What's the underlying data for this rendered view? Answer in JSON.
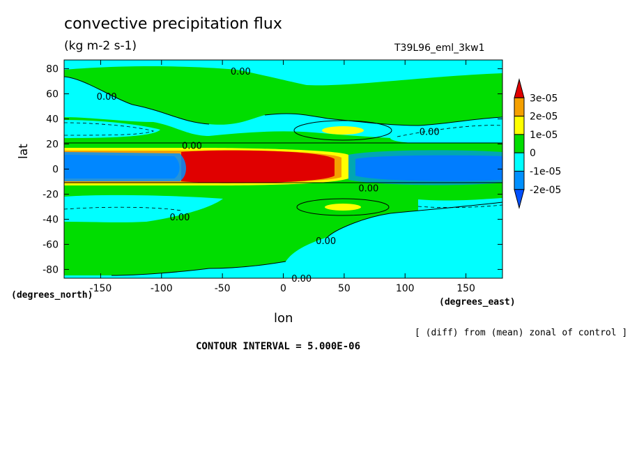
{
  "chart_data": {
    "type": "heatmap",
    "title": "convective precipitation flux",
    "units": "(kg m-2 s-1)",
    "run_id": "T39L96_eml_3kw1",
    "xlabel": "lon",
    "ylabel": "lat",
    "x_unit_label": "(degrees_east)",
    "y_unit_label": "(degrees_north)",
    "note": "[ (diff) from (mean) zonal of control ]",
    "contour_interval": "CONTOUR INTERVAL = 5.000E-06",
    "xlim": [
      -180,
      180
    ],
    "ylim": [
      -87,
      87
    ],
    "x_ticks": [
      -150,
      -100,
      -50,
      0,
      50,
      100,
      150
    ],
    "x_tick_labels": [
      "-150",
      "-100",
      "-50",
      "0",
      "50",
      "100",
      "150"
    ],
    "y_ticks": [
      80,
      60,
      40,
      20,
      0,
      -20,
      -40,
      -60,
      -80
    ],
    "y_tick_labels": [
      "80",
      "60",
      "40",
      "20",
      "0",
      "-20",
      "-40",
      "-60",
      "-80"
    ],
    "colorbar": {
      "labels": [
        "3e-05",
        "2e-05",
        "1e-05",
        "0",
        "-1e-05",
        "-2e-05"
      ],
      "colors": [
        "#e00000",
        "#f5a000",
        "#ffff00",
        "#00dd00",
        "#00ffff",
        "#0090ff",
        "#0050ff"
      ]
    },
    "contour_labels": [
      {
        "text": "0.00",
        "lon": -35,
        "lat": 78
      },
      {
        "text": "0.00",
        "lon": -145,
        "lat": 58
      },
      {
        "text": "0.00",
        "lon": -75,
        "lat": 19
      },
      {
        "text": "0.00",
        "lon": 120,
        "lat": 30
      },
      {
        "text": "0.00",
        "lon": 70,
        "lat": -15
      },
      {
        "text": "0.00",
        "lon": -85,
        "lat": -38
      },
      {
        "text": "0.00",
        "lon": 35,
        "lat": -57
      },
      {
        "text": "0.00",
        "lon": 15,
        "lat": -87
      }
    ]
  }
}
